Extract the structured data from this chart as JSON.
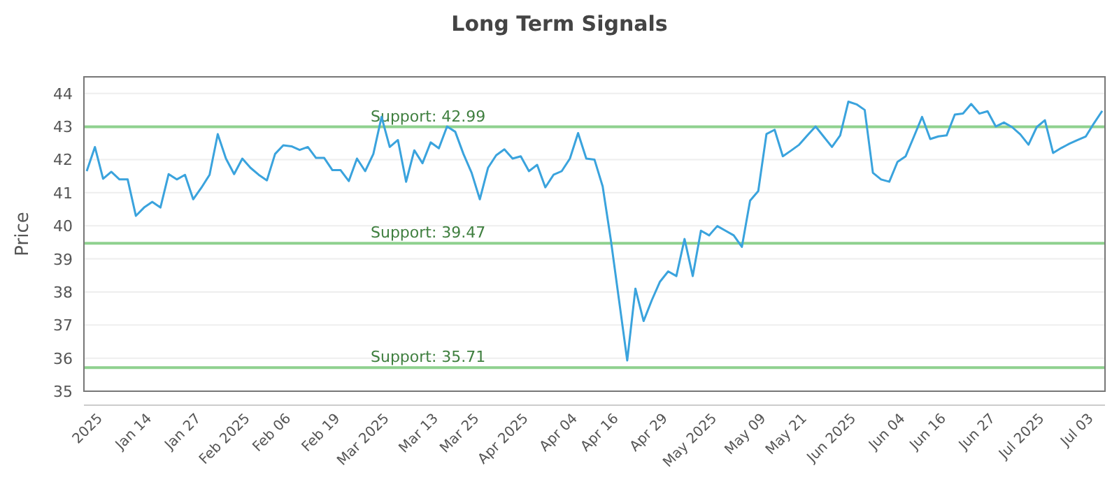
{
  "chart_data": {
    "type": "line",
    "title": "Long Term Signals",
    "ylabel": "Price",
    "categories": [
      null,
      null,
      "2025",
      null,
      null,
      null,
      null,
      null,
      "Jan 14",
      null,
      null,
      null,
      null,
      null,
      "Jan 27",
      null,
      null,
      null,
      null,
      null,
      "Feb 2025",
      null,
      null,
      null,
      null,
      "Feb 06",
      null,
      null,
      null,
      null,
      null,
      "Feb 19",
      null,
      null,
      null,
      null,
      null,
      "Mar 2025",
      null,
      null,
      null,
      null,
      null,
      "Mar 13",
      null,
      null,
      null,
      null,
      "Mar 25",
      null,
      null,
      null,
      null,
      null,
      "Apr 2025",
      null,
      null,
      null,
      null,
      null,
      "Apr 04",
      null,
      null,
      null,
      null,
      "Apr 16",
      null,
      null,
      null,
      null,
      null,
      "Apr 29",
      null,
      null,
      null,
      null,
      null,
      "May 2025",
      null,
      null,
      null,
      null,
      null,
      "May 09",
      null,
      null,
      null,
      null,
      "May 21",
      null,
      null,
      null,
      null,
      null,
      "Jun 2025",
      null,
      null,
      null,
      null,
      null,
      "Jun 04",
      null,
      null,
      null,
      null,
      "Jun 16",
      null,
      null,
      null,
      null,
      null,
      "Jun 27",
      null,
      null,
      null,
      null,
      null,
      "Jul 2025",
      null,
      null,
      null,
      null,
      null,
      "Jul 03",
      null
    ],
    "series": [
      {
        "color": "#3aa3dd",
        "values": [
          41.65,
          42.38,
          41.42,
          41.63,
          41.4,
          41.4,
          40.3,
          40.55,
          40.72,
          40.55,
          41.56,
          41.4,
          41.54,
          40.8,
          41.15,
          41.54,
          42.77,
          42.03,
          41.56,
          42.03,
          41.75,
          41.54,
          41.37,
          42.17,
          42.43,
          42.4,
          42.29,
          42.38,
          42.05,
          42.05,
          41.68,
          41.68,
          41.35,
          42.03,
          41.65,
          42.17,
          43.29,
          42.38,
          42.59,
          41.33,
          42.28,
          41.89,
          42.52,
          42.34,
          43.0,
          42.84,
          42.17,
          41.6,
          40.8,
          41.75,
          42.13,
          42.31,
          42.03,
          42.1,
          41.65,
          41.84,
          41.16,
          41.54,
          41.65,
          42.03,
          42.8,
          42.03,
          42.0,
          41.19,
          39.57,
          37.75,
          35.93,
          38.1,
          37.12,
          37.75,
          38.31,
          38.62,
          38.48,
          39.6,
          38.48,
          39.85,
          39.71,
          39.99,
          39.85,
          39.71,
          39.36,
          40.76,
          41.05,
          42.77,
          42.9,
          42.1,
          42.27,
          42.45,
          42.73,
          43.0,
          42.69,
          42.38,
          42.73,
          43.75,
          43.67,
          43.5,
          41.6,
          41.4,
          41.33,
          41.93,
          42.1,
          42.69,
          43.29,
          42.62,
          42.7,
          42.73,
          43.36,
          43.39,
          43.68,
          43.39,
          43.46,
          43.0,
          43.12,
          42.98,
          42.76,
          42.45,
          42.98,
          43.19,
          42.2,
          42.35,
          42.48,
          42.59,
          42.7,
          43.1,
          43.47
        ]
      }
    ],
    "ylim": [
      35,
      44.5
    ],
    "yticks": [
      35,
      36,
      37,
      38,
      39,
      40,
      41,
      42,
      43,
      44
    ],
    "grid": "y",
    "ref_lines": [
      {
        "axis": "y",
        "value": 42.99,
        "label": "Support: 42.99",
        "color": "#8fd18f"
      },
      {
        "axis": "y",
        "value": 39.47,
        "label": "Support: 39.47",
        "color": "#8fd18f"
      },
      {
        "axis": "y",
        "value": 35.71,
        "label": "Support: 35.71",
        "color": "#8fd18f"
      }
    ],
    "marker": "none",
    "line_style": "solid"
  }
}
